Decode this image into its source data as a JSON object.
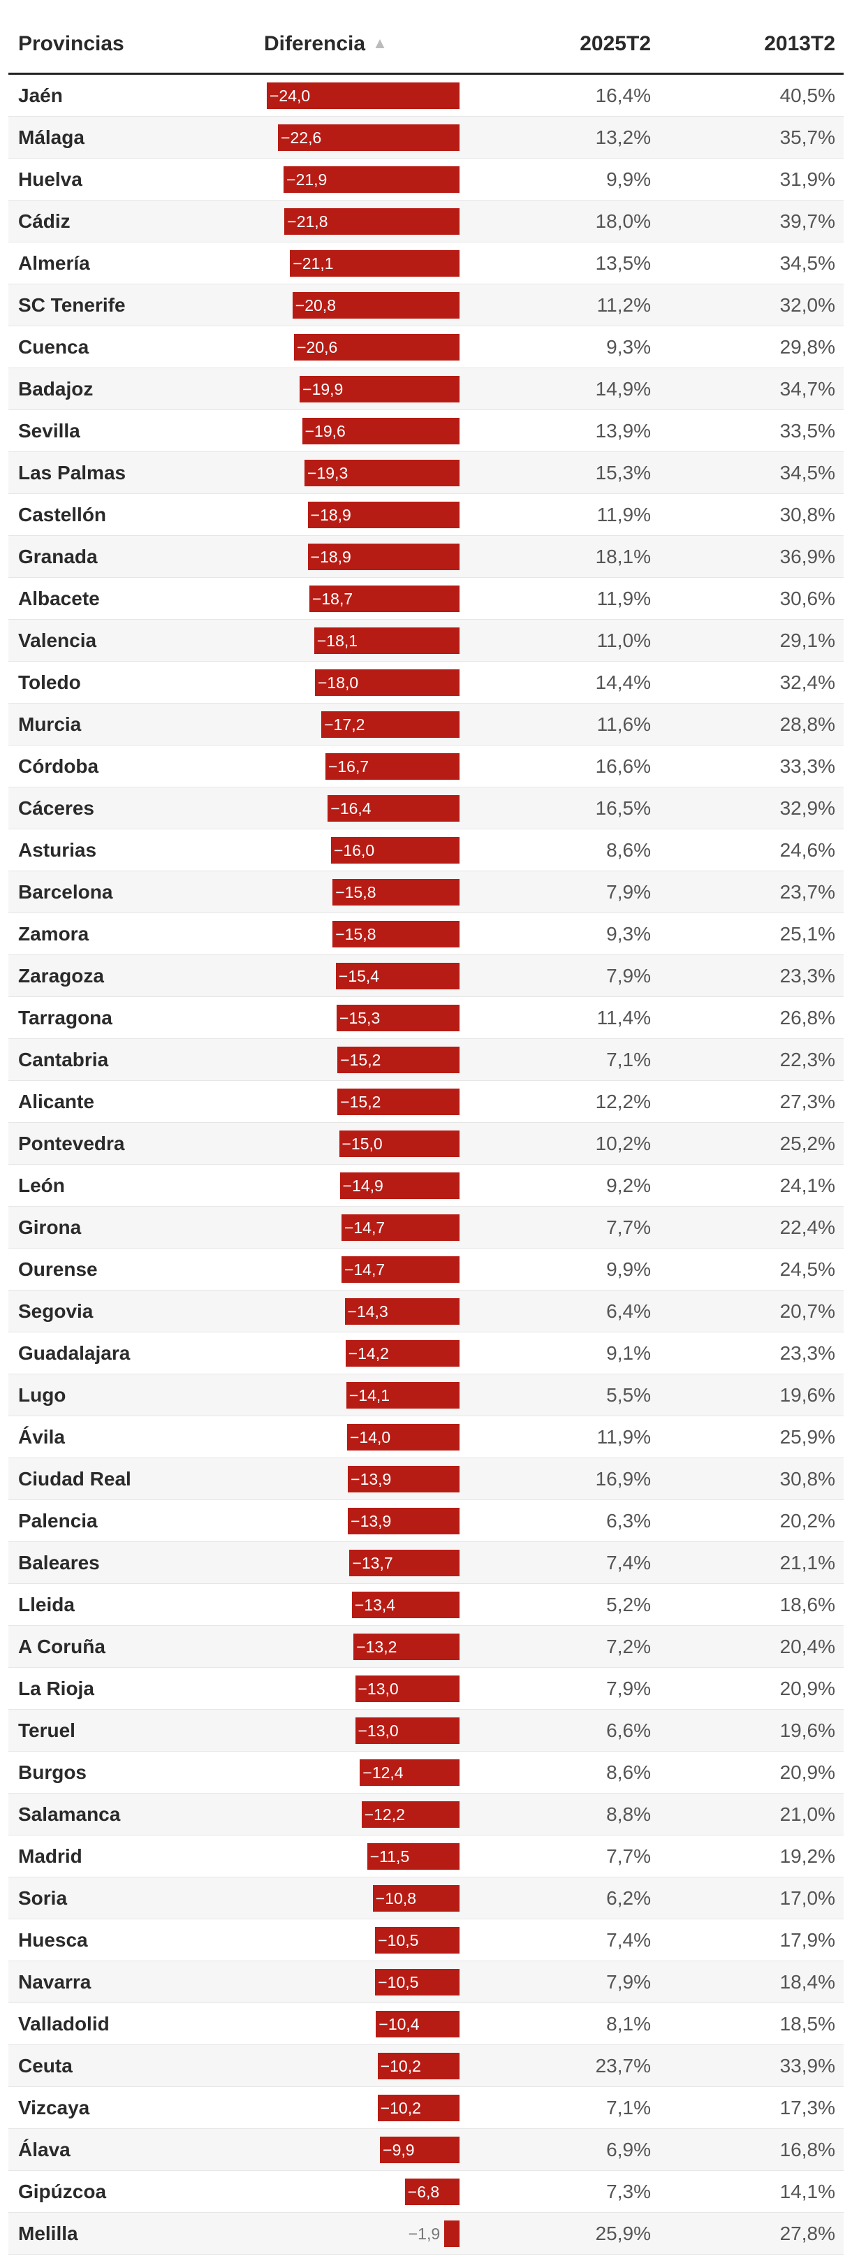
{
  "chart_data": {
    "type": "table",
    "columns": [
      "Provincias",
      "Diferencia",
      "2025T2",
      "2013T2"
    ],
    "sort_indicator": "▲",
    "bar_max": 24.0,
    "bar_color": "#b71c14",
    "rows": [
      {
        "name": "Jaén",
        "diff": -24.0,
        "diff_label": "−24,0",
        "v2025": "16,4%",
        "v2013": "40,5%"
      },
      {
        "name": "Málaga",
        "diff": -22.6,
        "diff_label": "−22,6",
        "v2025": "13,2%",
        "v2013": "35,7%"
      },
      {
        "name": "Huelva",
        "diff": -21.9,
        "diff_label": "−21,9",
        "v2025": "9,9%",
        "v2013": "31,9%"
      },
      {
        "name": "Cádiz",
        "diff": -21.8,
        "diff_label": "−21,8",
        "v2025": "18,0%",
        "v2013": "39,7%"
      },
      {
        "name": "Almería",
        "diff": -21.1,
        "diff_label": "−21,1",
        "v2025": "13,5%",
        "v2013": "34,5%"
      },
      {
        "name": "SC Tenerife",
        "diff": -20.8,
        "diff_label": "−20,8",
        "v2025": "11,2%",
        "v2013": "32,0%"
      },
      {
        "name": "Cuenca",
        "diff": -20.6,
        "diff_label": "−20,6",
        "v2025": "9,3%",
        "v2013": "29,8%"
      },
      {
        "name": "Badajoz",
        "diff": -19.9,
        "diff_label": "−19,9",
        "v2025": "14,9%",
        "v2013": "34,7%"
      },
      {
        "name": "Sevilla",
        "diff": -19.6,
        "diff_label": "−19,6",
        "v2025": "13,9%",
        "v2013": "33,5%"
      },
      {
        "name": "Las Palmas",
        "diff": -19.3,
        "diff_label": "−19,3",
        "v2025": "15,3%",
        "v2013": "34,5%"
      },
      {
        "name": "Castellón",
        "diff": -18.9,
        "diff_label": "−18,9",
        "v2025": "11,9%",
        "v2013": "30,8%"
      },
      {
        "name": "Granada",
        "diff": -18.9,
        "diff_label": "−18,9",
        "v2025": "18,1%",
        "v2013": "36,9%"
      },
      {
        "name": "Albacete",
        "diff": -18.7,
        "diff_label": "−18,7",
        "v2025": "11,9%",
        "v2013": "30,6%"
      },
      {
        "name": "Valencia",
        "diff": -18.1,
        "diff_label": "−18,1",
        "v2025": "11,0%",
        "v2013": "29,1%"
      },
      {
        "name": "Toledo",
        "diff": -18.0,
        "diff_label": "−18,0",
        "v2025": "14,4%",
        "v2013": "32,4%"
      },
      {
        "name": "Murcia",
        "diff": -17.2,
        "diff_label": "−17,2",
        "v2025": "11,6%",
        "v2013": "28,8%"
      },
      {
        "name": "Córdoba",
        "diff": -16.7,
        "diff_label": "−16,7",
        "v2025": "16,6%",
        "v2013": "33,3%"
      },
      {
        "name": "Cáceres",
        "diff": -16.4,
        "diff_label": "−16,4",
        "v2025": "16,5%",
        "v2013": "32,9%"
      },
      {
        "name": "Asturias",
        "diff": -16.0,
        "diff_label": "−16,0",
        "v2025": "8,6%",
        "v2013": "24,6%"
      },
      {
        "name": "Barcelona",
        "diff": -15.8,
        "diff_label": "−15,8",
        "v2025": "7,9%",
        "v2013": "23,7%"
      },
      {
        "name": "Zamora",
        "diff": -15.8,
        "diff_label": "−15,8",
        "v2025": "9,3%",
        "v2013": "25,1%"
      },
      {
        "name": "Zaragoza",
        "diff": -15.4,
        "diff_label": "−15,4",
        "v2025": "7,9%",
        "v2013": "23,3%"
      },
      {
        "name": "Tarragona",
        "diff": -15.3,
        "diff_label": "−15,3",
        "v2025": "11,4%",
        "v2013": "26,8%"
      },
      {
        "name": "Cantabria",
        "diff": -15.2,
        "diff_label": "−15,2",
        "v2025": "7,1%",
        "v2013": "22,3%"
      },
      {
        "name": "Alicante",
        "diff": -15.2,
        "diff_label": "−15,2",
        "v2025": "12,2%",
        "v2013": "27,3%"
      },
      {
        "name": "Pontevedra",
        "diff": -15.0,
        "diff_label": "−15,0",
        "v2025": "10,2%",
        "v2013": "25,2%"
      },
      {
        "name": "León",
        "diff": -14.9,
        "diff_label": "−14,9",
        "v2025": "9,2%",
        "v2013": "24,1%"
      },
      {
        "name": "Girona",
        "diff": -14.7,
        "diff_label": "−14,7",
        "v2025": "7,7%",
        "v2013": "22,4%"
      },
      {
        "name": "Ourense",
        "diff": -14.7,
        "diff_label": "−14,7",
        "v2025": "9,9%",
        "v2013": "24,5%"
      },
      {
        "name": "Segovia",
        "diff": -14.3,
        "diff_label": "−14,3",
        "v2025": "6,4%",
        "v2013": "20,7%"
      },
      {
        "name": "Guadalajara",
        "diff": -14.2,
        "diff_label": "−14,2",
        "v2025": "9,1%",
        "v2013": "23,3%"
      },
      {
        "name": "Lugo",
        "diff": -14.1,
        "diff_label": "−14,1",
        "v2025": "5,5%",
        "v2013": "19,6%"
      },
      {
        "name": "Ávila",
        "diff": -14.0,
        "diff_label": "−14,0",
        "v2025": "11,9%",
        "v2013": "25,9%"
      },
      {
        "name": "Ciudad Real",
        "diff": -13.9,
        "diff_label": "−13,9",
        "v2025": "16,9%",
        "v2013": "30,8%"
      },
      {
        "name": "Palencia",
        "diff": -13.9,
        "diff_label": "−13,9",
        "v2025": "6,3%",
        "v2013": "20,2%"
      },
      {
        "name": "Baleares",
        "diff": -13.7,
        "diff_label": "−13,7",
        "v2025": "7,4%",
        "v2013": "21,1%"
      },
      {
        "name": "Lleida",
        "diff": -13.4,
        "diff_label": "−13,4",
        "v2025": "5,2%",
        "v2013": "18,6%"
      },
      {
        "name": "A Coruña",
        "diff": -13.2,
        "diff_label": "−13,2",
        "v2025": "7,2%",
        "v2013": "20,4%"
      },
      {
        "name": "La Rioja",
        "diff": -13.0,
        "diff_label": "−13,0",
        "v2025": "7,9%",
        "v2013": "20,9%"
      },
      {
        "name": "Teruel",
        "diff": -13.0,
        "diff_label": "−13,0",
        "v2025": "6,6%",
        "v2013": "19,6%"
      },
      {
        "name": "Burgos",
        "diff": -12.4,
        "diff_label": "−12,4",
        "v2025": "8,6%",
        "v2013": "20,9%"
      },
      {
        "name": "Salamanca",
        "diff": -12.2,
        "diff_label": "−12,2",
        "v2025": "8,8%",
        "v2013": "21,0%"
      },
      {
        "name": "Madrid",
        "diff": -11.5,
        "diff_label": "−11,5",
        "v2025": "7,7%",
        "v2013": "19,2%"
      },
      {
        "name": "Soria",
        "diff": -10.8,
        "diff_label": "−10,8",
        "v2025": "6,2%",
        "v2013": "17,0%"
      },
      {
        "name": "Huesca",
        "diff": -10.5,
        "diff_label": "−10,5",
        "v2025": "7,4%",
        "v2013": "17,9%"
      },
      {
        "name": "Navarra",
        "diff": -10.5,
        "diff_label": "−10,5",
        "v2025": "7,9%",
        "v2013": "18,4%"
      },
      {
        "name": "Valladolid",
        "diff": -10.4,
        "diff_label": "−10,4",
        "v2025": "8,1%",
        "v2013": "18,5%"
      },
      {
        "name": "Ceuta",
        "diff": -10.2,
        "diff_label": "−10,2",
        "v2025": "23,7%",
        "v2013": "33,9%"
      },
      {
        "name": "Vizcaya",
        "diff": -10.2,
        "diff_label": "−10,2",
        "v2025": "7,1%",
        "v2013": "17,3%"
      },
      {
        "name": "Álava",
        "diff": -9.9,
        "diff_label": "−9,9",
        "v2025": "6,9%",
        "v2013": "16,8%"
      },
      {
        "name": "Gipúzcoa",
        "diff": -6.8,
        "diff_label": "−6,8",
        "v2025": "7,3%",
        "v2013": "14,1%"
      },
      {
        "name": "Melilla",
        "diff": -1.9,
        "diff_label": "−1,9",
        "v2025": "25,9%",
        "v2013": "27,8%"
      }
    ]
  }
}
